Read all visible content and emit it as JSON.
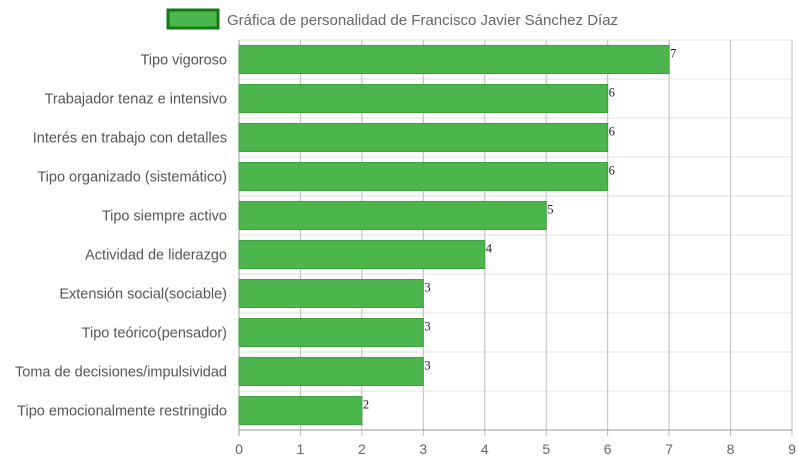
{
  "chart_data": {
    "type": "bar",
    "orientation": "horizontal",
    "legend": {
      "label": "Gráfica de personalidad de Francisco Javier Sánchez Díaz",
      "placement": "top-center"
    },
    "categories": [
      "Tipo vigoroso",
      "Trabajador tenaz e intensivo",
      "Interés en trabajo con detalles",
      "Tipo organizado (sistemático)",
      "Tipo siempre activo",
      "Actividad de liderazgo",
      "Extensión social(sociable)",
      "Tipo teórico(pensador)",
      "Toma de decisiones/impulsividad",
      "Tipo emocionalmente restringido"
    ],
    "series": [
      {
        "name": "Gráfica de personalidad de Francisco Javier Sánchez Díaz",
        "values": [
          7,
          6,
          6,
          6,
          5,
          4,
          3,
          3,
          3,
          2
        ]
      }
    ],
    "xlim": [
      0,
      9
    ],
    "x_ticks": [
      "0",
      "1",
      "2",
      "3",
      "4",
      "5",
      "6",
      "7",
      "8",
      "9"
    ],
    "grid": true,
    "colors": {
      "bar_fill": "#4db54d",
      "bar_border": "#3f9f3f",
      "legend_border": "#127a12",
      "grid": "#bdbdbd",
      "grid_row": "#e2e2e2"
    }
  }
}
